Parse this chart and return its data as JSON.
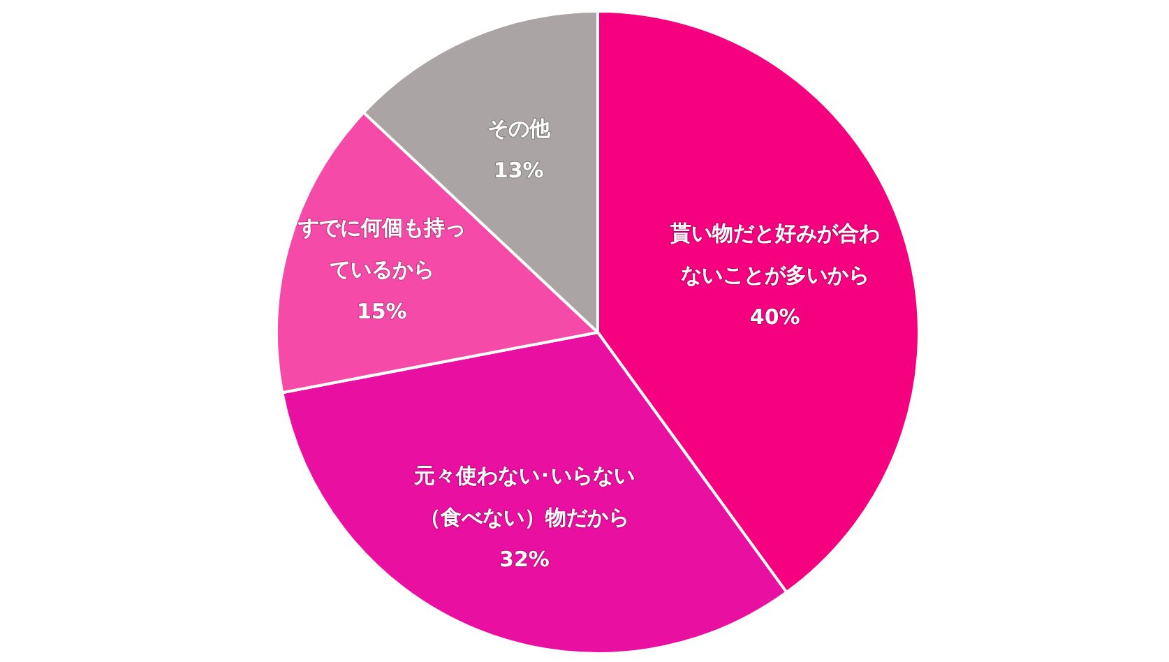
{
  "chart_data": {
    "type": "pie",
    "categories": [
      "貰い物だと好みが合わないことが多いから",
      "元々使わない･いらない（食べない）物だから",
      "すでに何個も持っているから",
      "その他"
    ],
    "values": [
      40,
      32,
      15,
      13
    ],
    "colors": [
      "#f5007f",
      "#e90fa0",
      "#f54aa8",
      "#aaa4a4"
    ],
    "value_labels": [
      "40%",
      "32%",
      "15%",
      "13%"
    ]
  }
}
